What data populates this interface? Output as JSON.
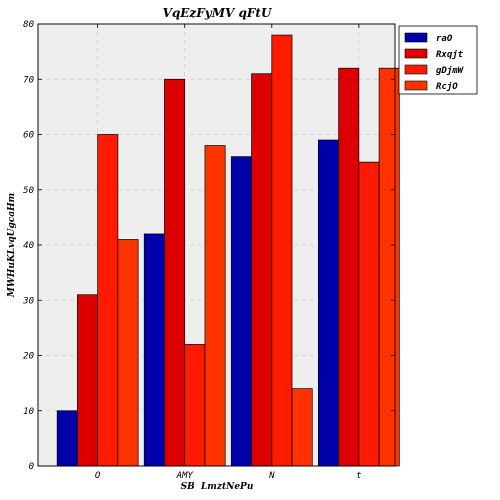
{
  "chart_data": {
    "type": "bar",
    "title": "VqEzFyMV qFtU",
    "xlabel": "SB  LmztNePu",
    "ylabel": "MWHuKLvqUgcaHm",
    "categories": [
      "O",
      "AMY",
      "N",
      "t"
    ],
    "ylim": [
      0,
      80
    ],
    "yticks": [
      0,
      10,
      20,
      30,
      40,
      50,
      60,
      70,
      80
    ],
    "grid": true,
    "legend_position": "top-right",
    "series": [
      {
        "name": "raO",
        "color": "#0000aa",
        "values": [
          10,
          42,
          56,
          59
        ]
      },
      {
        "name": "Rxqjt",
        "color": "#dd0000",
        "values": [
          31,
          70,
          71,
          72
        ]
      },
      {
        "name": "gDjmW",
        "color": "#ff1a00",
        "values": [
          60,
          22,
          78,
          55
        ]
      },
      {
        "name": "RcjO",
        "color": "#ff3300",
        "values": [
          41,
          58,
          14,
          72
        ]
      }
    ]
  }
}
